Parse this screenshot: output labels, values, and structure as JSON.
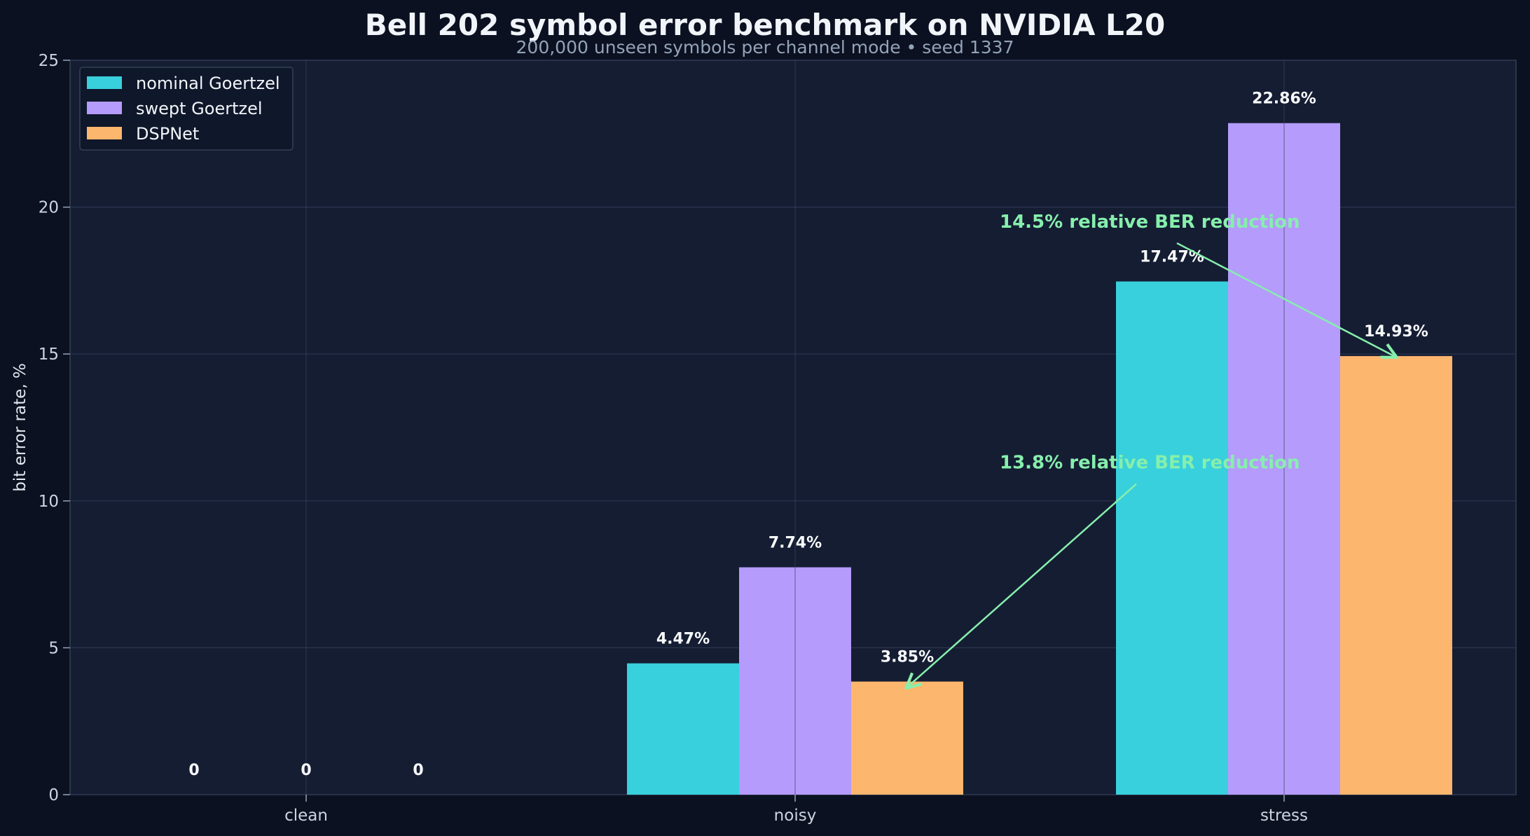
{
  "chart_data": {
    "type": "bar",
    "title": "Bell 202 symbol error benchmark on NVIDIA L20",
    "subtitle": "200,000 unseen symbols per channel mode • seed 1337",
    "ylabel": "bit error rate, %",
    "xlabel": "",
    "ylim": [
      0,
      25
    ],
    "yticks": [
      0,
      5,
      10,
      15,
      20,
      25
    ],
    "grid": true,
    "legend_position": "top-left",
    "categories": [
      "clean",
      "noisy",
      "stress"
    ],
    "series": [
      {
        "name": "nominal Goertzel",
        "color": "#38d0dc",
        "values": [
          0,
          4.47,
          17.47
        ],
        "labels": [
          "0",
          "4.47%",
          "17.47%"
        ]
      },
      {
        "name": "swept Goertzel",
        "color": "#b59bfc",
        "values": [
          0,
          7.74,
          22.86
        ],
        "labels": [
          "0",
          "7.74%",
          "22.86%"
        ]
      },
      {
        "name": "DSPNet",
        "color": "#fdb66d",
        "values": [
          0,
          3.85,
          14.93
        ],
        "labels": [
          "0",
          "3.85%",
          "14.93%"
        ]
      }
    ],
    "annotations": [
      {
        "text": "14.5% relative BER reduction",
        "category": "stress",
        "series": "DSPNet",
        "text_value": 19.3
      },
      {
        "text": "13.8% relative BER reduction",
        "category": "noisy",
        "series": "DSPNet",
        "text_value": 11.1
      }
    ],
    "annotation_color": "#86efac"
  }
}
